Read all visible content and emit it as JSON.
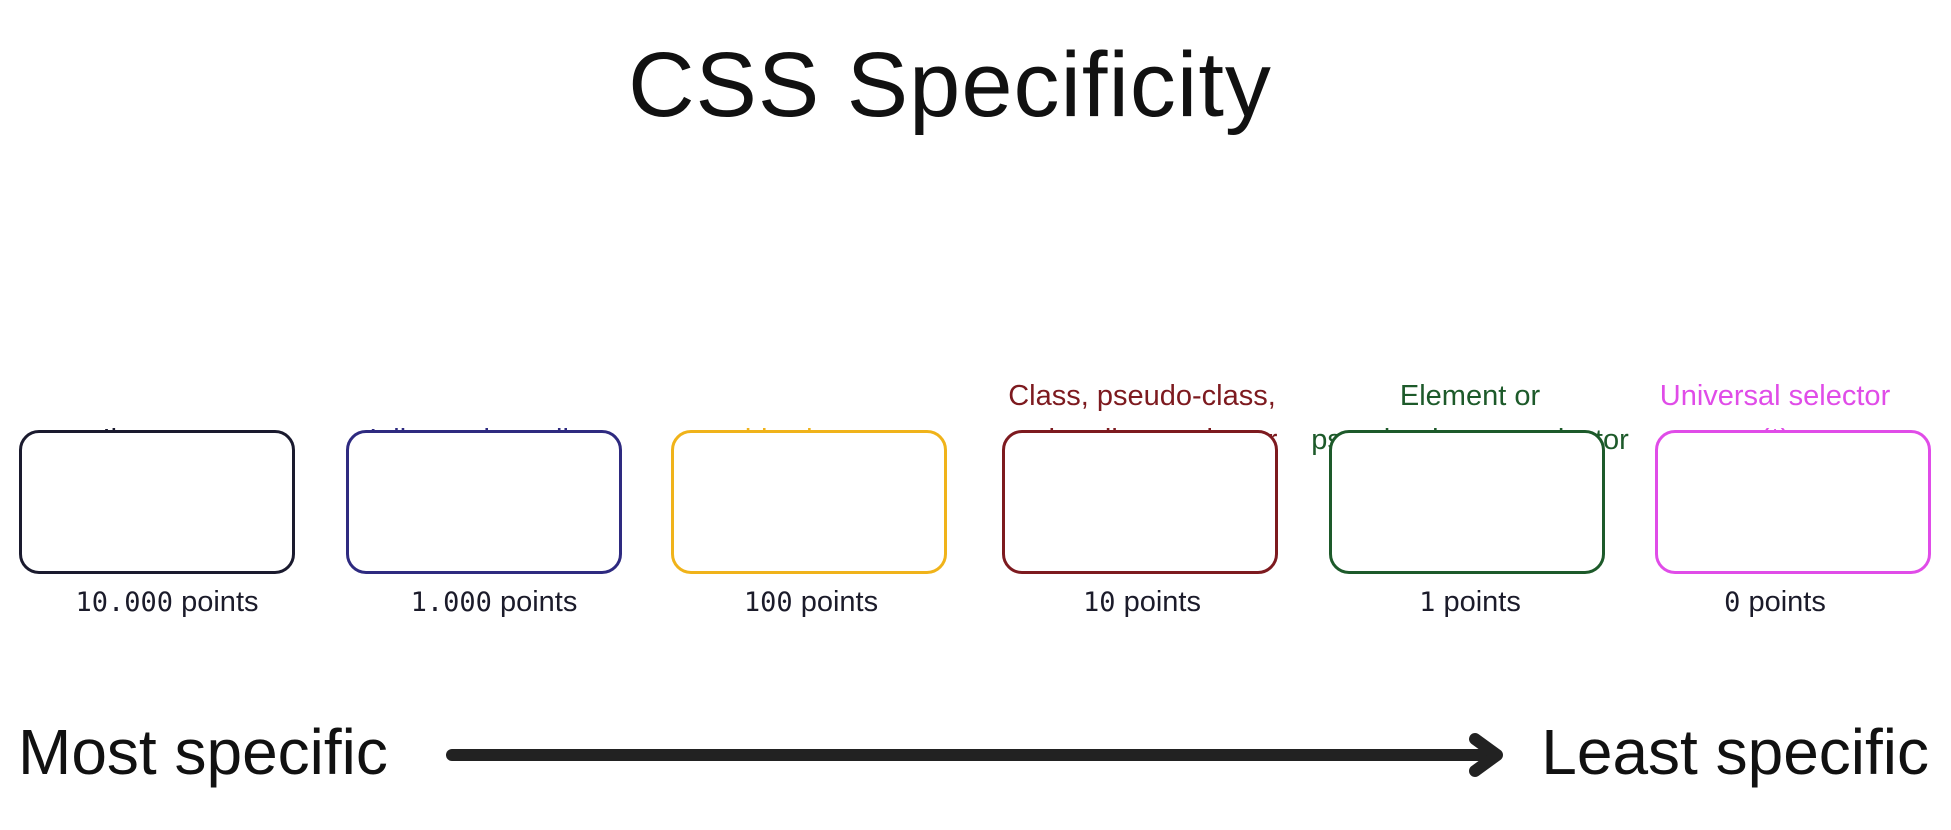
{
  "title": "CSS Specificity",
  "items": [
    {
      "label_lines": [
        "!important"
      ],
      "points_number": "10.000",
      "points_word": "points",
      "color": "#1a1a2e"
    },
    {
      "label_lines": [
        "Inline style attribute"
      ],
      "points_number": "1.000",
      "points_word": "points",
      "color": "#2e2a80"
    },
    {
      "label_lines": [
        "id selector"
      ],
      "points_number": "100",
      "points_word": "points",
      "color": "#f0b31a"
    },
    {
      "label_lines": [
        "Class, pseudo-class,",
        "and attribute selector"
      ],
      "points_number": "10",
      "points_word": "points",
      "color": "#7d1a1f"
    },
    {
      "label_lines": [
        "Element or",
        "pseudo-element selector"
      ],
      "points_number": "1",
      "points_word": "points",
      "color": "#1d5a2a"
    },
    {
      "label_lines": [
        "Universal selector",
        "(*)"
      ],
      "points_number": "0",
      "points_word": "points",
      "color": "#e04ce8"
    }
  ],
  "scale": {
    "left_label": "Most specific",
    "right_label": "Least specific"
  },
  "arrow_color": "#222222"
}
